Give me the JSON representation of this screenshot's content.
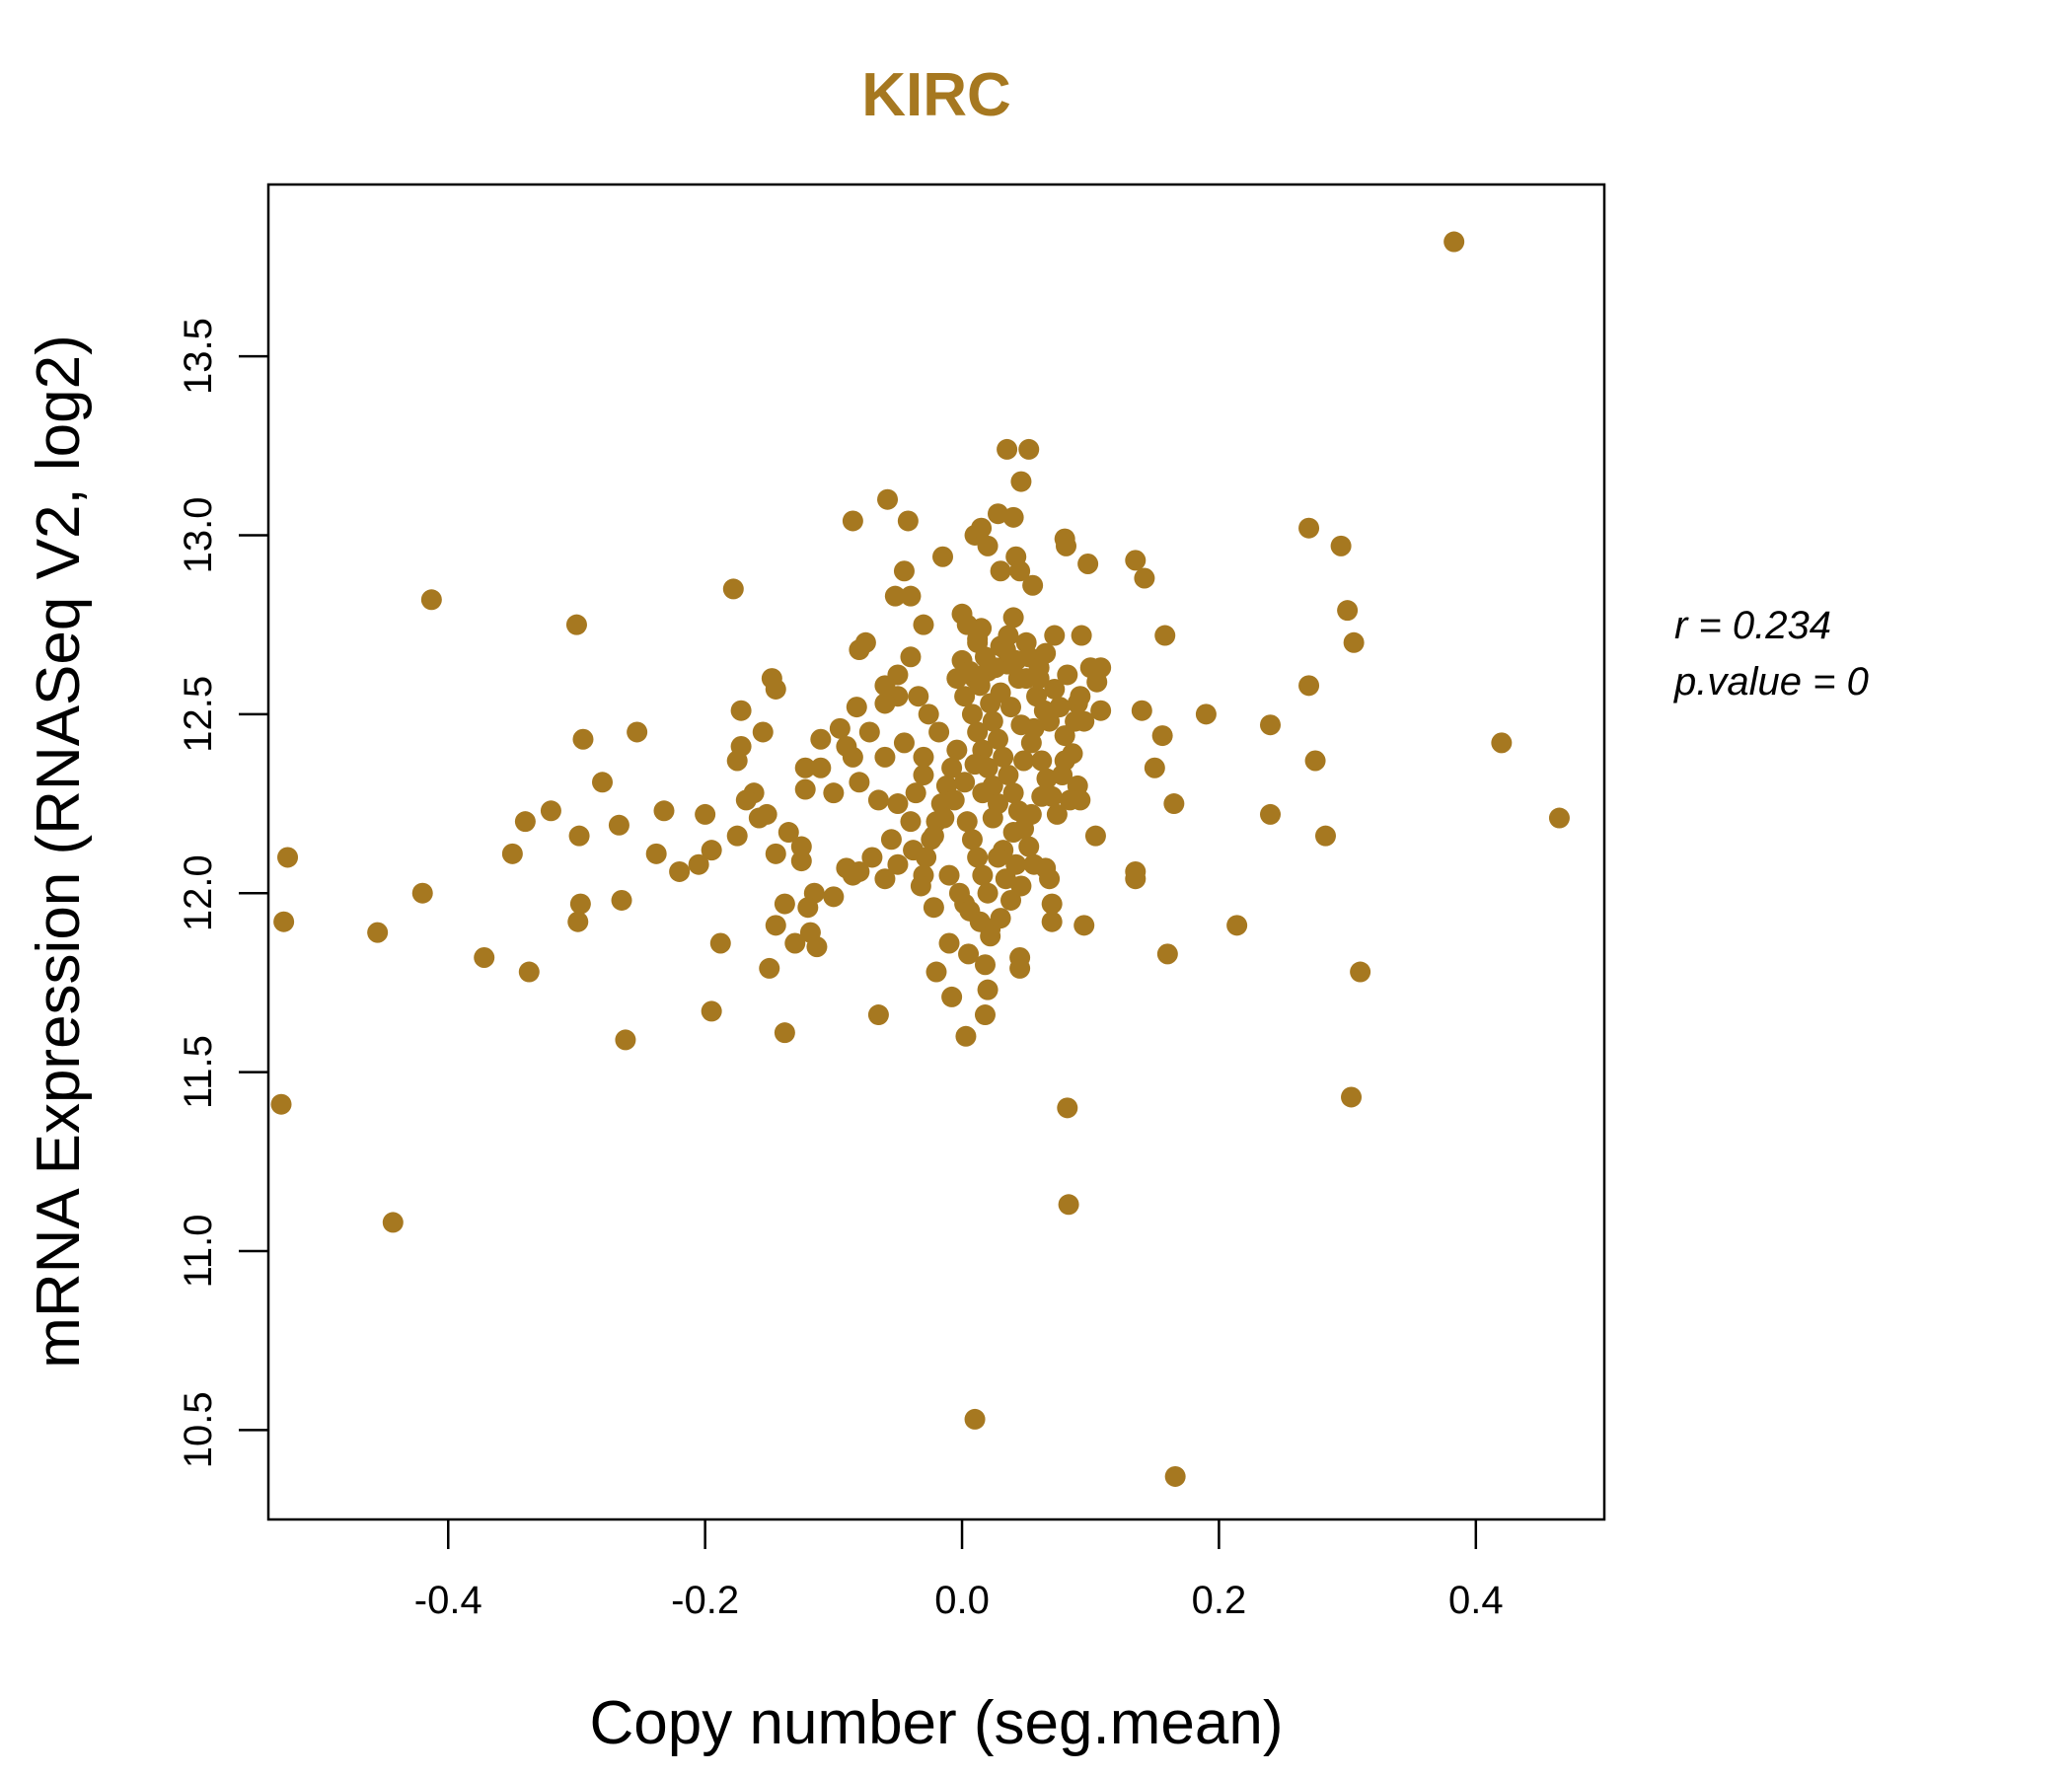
{
  "chart_data": {
    "type": "scatter",
    "title": "KIRC",
    "xlabel": "Copy number (seg.mean)",
    "ylabel": "mRNA Expression (RNASeq V2, log2)",
    "xlim": [
      -0.54,
      0.5
    ],
    "ylim": [
      10.25,
      13.98
    ],
    "xticks": [
      -0.4,
      -0.2,
      0.0,
      0.2,
      0.4
    ],
    "xtick_labels": [
      "-0.4",
      "-0.2",
      "0.0",
      "0.2",
      "0.4"
    ],
    "yticks": [
      10.5,
      11.0,
      11.5,
      12.0,
      12.5,
      13.0,
      13.5
    ],
    "ytick_labels": [
      "10.5",
      "11.0",
      "11.5",
      "12.0",
      "12.5",
      "13.0",
      "13.5"
    ],
    "color": "#A67820",
    "annotation": {
      "r_label": "r = 0.234",
      "p_label": "p.value = 0"
    },
    "points": [
      [
        0.383,
        13.82
      ],
      [
        0.035,
        13.24
      ],
      [
        0.052,
        13.24
      ],
      [
        0.046,
        13.15
      ],
      [
        -0.058,
        13.1
      ],
      [
        0.028,
        13.06
      ],
      [
        0.04,
        13.05
      ],
      [
        -0.085,
        13.04
      ],
      [
        -0.042,
        13.04
      ],
      [
        0.01,
        13.0
      ],
      [
        0.015,
        13.02
      ],
      [
        0.27,
        13.02
      ],
      [
        0.08,
        12.99
      ],
      [
        0.295,
        12.97
      ],
      [
        0.02,
        12.97
      ],
      [
        -0.015,
        12.94
      ],
      [
        0.042,
        12.94
      ],
      [
        0.081,
        12.97
      ],
      [
        0.135,
        12.93
      ],
      [
        0.098,
        12.92
      ],
      [
        0.03,
        12.9
      ],
      [
        0.045,
        12.9
      ],
      [
        0.055,
        12.86
      ],
      [
        0.142,
        12.88
      ],
      [
        -0.045,
        12.9
      ],
      [
        -0.178,
        12.85
      ],
      [
        -0.413,
        12.82
      ],
      [
        -0.052,
        12.83
      ],
      [
        -0.04,
        12.83
      ],
      [
        0.3,
        12.79
      ],
      [
        -0.3,
        12.75
      ],
      [
        0.0,
        12.78
      ],
      [
        0.04,
        12.77
      ],
      [
        0.015,
        12.74
      ],
      [
        -0.03,
        12.75
      ],
      [
        0.158,
        12.72
      ],
      [
        0.072,
        12.72
      ],
      [
        0.093,
        12.72
      ],
      [
        0.305,
        12.7
      ],
      [
        -0.075,
        12.7
      ],
      [
        -0.08,
        12.68
      ],
      [
        -0.04,
        12.66
      ],
      [
        0.012,
        12.71
      ],
      [
        0.03,
        12.69
      ],
      [
        0.05,
        12.7
      ],
      [
        0.065,
        12.67
      ],
      [
        0.1,
        12.63
      ],
      [
        0.108,
        12.63
      ],
      [
        -0.05,
        12.61
      ],
      [
        -0.148,
        12.6
      ],
      [
        -0.06,
        12.58
      ],
      [
        0.01,
        12.6
      ],
      [
        0.02,
        12.62
      ],
      [
        0.035,
        12.64
      ],
      [
        0.27,
        12.58
      ],
      [
        -0.145,
        12.57
      ],
      [
        0.105,
        12.59
      ],
      [
        0.082,
        12.61
      ],
      [
        0.06,
        12.6
      ],
      [
        -0.05,
        12.55
      ],
      [
        0.14,
        12.51
      ],
      [
        0.19,
        12.5
      ],
      [
        -0.172,
        12.51
      ],
      [
        -0.082,
        12.52
      ],
      [
        -0.06,
        12.53
      ],
      [
        0.108,
        12.51
      ],
      [
        0.09,
        12.53
      ],
      [
        0.095,
        12.48
      ],
      [
        0.24,
        12.47
      ],
      [
        -0.155,
        12.45
      ],
      [
        -0.253,
        12.45
      ],
      [
        -0.295,
        12.43
      ],
      [
        -0.11,
        12.43
      ],
      [
        -0.095,
        12.46
      ],
      [
        -0.072,
        12.45
      ],
      [
        -0.045,
        12.42
      ],
      [
        0.156,
        12.44
      ],
      [
        0.42,
        12.42
      ],
      [
        -0.172,
        12.41
      ],
      [
        -0.09,
        12.41
      ],
      [
        -0.085,
        12.38
      ],
      [
        -0.06,
        12.38
      ],
      [
        -0.175,
        12.37
      ],
      [
        0.275,
        12.37
      ],
      [
        0.08,
        12.37
      ],
      [
        -0.122,
        12.35
      ],
      [
        -0.11,
        12.35
      ],
      [
        0.15,
        12.35
      ],
      [
        -0.28,
        12.31
      ],
      [
        -0.08,
        12.31
      ],
      [
        -0.03,
        12.33
      ],
      [
        0.09,
        12.3
      ],
      [
        0.092,
        12.26
      ],
      [
        -0.122,
        12.29
      ],
      [
        -0.1,
        12.28
      ],
      [
        -0.162,
        12.28
      ],
      [
        -0.168,
        12.26
      ],
      [
        0.165,
        12.25
      ],
      [
        -0.065,
        12.26
      ],
      [
        -0.05,
        12.25
      ],
      [
        -0.232,
        12.23
      ],
      [
        -0.32,
        12.23
      ],
      [
        -0.2,
        12.22
      ],
      [
        0.24,
        12.22
      ],
      [
        0.465,
        12.21
      ],
      [
        -0.34,
        12.2
      ],
      [
        -0.158,
        12.21
      ],
      [
        -0.152,
        12.22
      ],
      [
        -0.267,
        12.19
      ],
      [
        -0.135,
        12.17
      ],
      [
        -0.298,
        12.16
      ],
      [
        0.283,
        12.16
      ],
      [
        0.104,
        12.16
      ],
      [
        -0.175,
        12.16
      ],
      [
        -0.055,
        12.15
      ],
      [
        -0.125,
        12.13
      ],
      [
        -0.238,
        12.11
      ],
      [
        -0.145,
        12.11
      ],
      [
        -0.195,
        12.12
      ],
      [
        -0.07,
        12.1
      ],
      [
        -0.05,
        12.08
      ],
      [
        0.065,
        12.07
      ],
      [
        -0.35,
        12.11
      ],
      [
        -0.525,
        12.1
      ],
      [
        -0.205,
        12.08
      ],
      [
        -0.125,
        12.09
      ],
      [
        -0.09,
        12.07
      ],
      [
        -0.22,
        12.06
      ],
      [
        -0.08,
        12.06
      ],
      [
        0.135,
        12.06
      ],
      [
        -0.085,
        12.05
      ],
      [
        -0.06,
        12.04
      ],
      [
        -0.03,
        12.05
      ],
      [
        0.068,
        12.04
      ],
      [
        0.135,
        12.04
      ],
      [
        -0.42,
        12.0
      ],
      [
        -0.115,
        12.0
      ],
      [
        -0.1,
        11.99
      ],
      [
        -0.265,
        11.98
      ],
      [
        -0.297,
        11.97
      ],
      [
        -0.138,
        11.97
      ],
      [
        -0.12,
        11.96
      ],
      [
        -0.022,
        11.96
      ],
      [
        0.002,
        11.97
      ],
      [
        0.07,
        11.97
      ],
      [
        -0.528,
        11.92
      ],
      [
        -0.299,
        11.92
      ],
      [
        -0.455,
        11.89
      ],
      [
        -0.145,
        11.91
      ],
      [
        -0.118,
        11.89
      ],
      [
        0.214,
        11.91
      ],
      [
        0.095,
        11.91
      ],
      [
        0.07,
        11.92
      ],
      [
        0.022,
        11.9
      ],
      [
        -0.188,
        11.86
      ],
      [
        -0.13,
        11.86
      ],
      [
        -0.113,
        11.85
      ],
      [
        -0.01,
        11.86
      ],
      [
        0.005,
        11.83
      ],
      [
        0.16,
        11.83
      ],
      [
        -0.372,
        11.82
      ],
      [
        -0.15,
        11.79
      ],
      [
        -0.337,
        11.78
      ],
      [
        -0.02,
        11.78
      ],
      [
        0.31,
        11.78
      ],
      [
        0.045,
        11.82
      ],
      [
        0.045,
        11.79
      ],
      [
        0.018,
        11.8
      ],
      [
        -0.008,
        11.71
      ],
      [
        0.02,
        11.73
      ],
      [
        -0.195,
        11.67
      ],
      [
        -0.065,
        11.66
      ],
      [
        0.018,
        11.66
      ],
      [
        -0.138,
        11.61
      ],
      [
        0.003,
        11.6
      ],
      [
        -0.262,
        11.59
      ],
      [
        0.303,
        11.43
      ],
      [
        -0.53,
        11.41
      ],
      [
        0.082,
        11.4
      ],
      [
        0.083,
        11.13
      ],
      [
        -0.443,
        11.08
      ],
      [
        0.01,
        10.53
      ],
      [
        0.166,
        10.37
      ],
      [
        0.002,
        12.55
      ],
      [
        0.008,
        12.5
      ],
      [
        0.012,
        12.45
      ],
      [
        0.016,
        12.4
      ],
      [
        0.02,
        12.35
      ],
      [
        0.024,
        12.3
      ],
      [
        0.028,
        12.25
      ],
      [
        0.004,
        12.2
      ],
      [
        0.008,
        12.15
      ],
      [
        0.012,
        12.1
      ],
      [
        0.016,
        12.05
      ],
      [
        0.02,
        12.0
      ],
      [
        0.024,
        12.48
      ],
      [
        0.028,
        12.43
      ],
      [
        0.032,
        12.38
      ],
      [
        0.036,
        12.33
      ],
      [
        0.04,
        12.28
      ],
      [
        0.044,
        12.23
      ],
      [
        0.048,
        12.18
      ],
      [
        0.052,
        12.13
      ],
      [
        0.056,
        12.08
      ],
      [
        -0.004,
        12.4
      ],
      [
        -0.008,
        12.35
      ],
      [
        -0.012,
        12.3
      ],
      [
        -0.016,
        12.25
      ],
      [
        -0.02,
        12.2
      ],
      [
        -0.024,
        12.15
      ],
      [
        -0.028,
        12.1
      ],
      [
        -0.004,
        12.6
      ],
      [
        0.0,
        12.65
      ],
      [
        0.006,
        12.62
      ],
      [
        0.014,
        12.58
      ],
      [
        0.022,
        12.53
      ],
      [
        0.03,
        12.56
      ],
      [
        0.038,
        12.52
      ],
      [
        0.046,
        12.47
      ],
      [
        0.054,
        12.42
      ],
      [
        0.062,
        12.37
      ],
      [
        0.066,
        12.32
      ],
      [
        0.07,
        12.27
      ],
      [
        0.074,
        12.22
      ],
      [
        0.058,
        12.55
      ],
      [
        0.05,
        12.6
      ],
      [
        0.042,
        12.65
      ],
      [
        0.034,
        12.68
      ],
      [
        0.026,
        12.63
      ],
      [
        0.018,
        12.66
      ],
      [
        0.01,
        12.36
      ],
      [
        0.002,
        12.31
      ],
      [
        -0.006,
        12.26
      ],
      [
        -0.014,
        12.21
      ],
      [
        -0.022,
        12.16
      ],
      [
        -0.01,
        12.05
      ],
      [
        -0.002,
        12.0
      ],
      [
        0.006,
        11.95
      ],
      [
        0.014,
        11.92
      ],
      [
        0.022,
        11.88
      ],
      [
        0.03,
        11.93
      ],
      [
        0.038,
        11.98
      ],
      [
        0.046,
        12.02
      ],
      [
        0.032,
        12.12
      ],
      [
        0.04,
        12.17
      ],
      [
        0.048,
        12.37
      ],
      [
        0.056,
        12.46
      ],
      [
        0.064,
        12.51
      ],
      [
        0.072,
        12.57
      ],
      [
        0.08,
        12.44
      ],
      [
        0.086,
        12.39
      ],
      [
        0.078,
        12.33
      ],
      [
        0.062,
        12.27
      ],
      [
        -0.018,
        12.45
      ],
      [
        -0.026,
        12.5
      ],
      [
        -0.034,
        12.55
      ],
      [
        -0.03,
        12.38
      ],
      [
        -0.036,
        12.28
      ],
      [
        -0.04,
        12.2
      ],
      [
        -0.032,
        12.02
      ],
      [
        -0.038,
        12.12
      ],
      [
        0.004,
        12.75
      ],
      [
        0.012,
        12.7
      ],
      [
        0.036,
        12.72
      ],
      [
        0.044,
        12.6
      ],
      [
        0.052,
        12.66
      ],
      [
        0.06,
        12.63
      ],
      [
        0.068,
        12.48
      ],
      [
        0.076,
        12.52
      ],
      [
        0.084,
        12.26
      ],
      [
        0.088,
        12.48
      ],
      [
        0.092,
        12.55
      ],
      [
        0.028,
        12.1
      ],
      [
        0.034,
        12.04
      ],
      [
        0.042,
        12.08
      ],
      [
        0.054,
        12.22
      ],
      [
        0.016,
        12.28
      ],
      [
        0.024,
        12.21
      ]
    ]
  }
}
